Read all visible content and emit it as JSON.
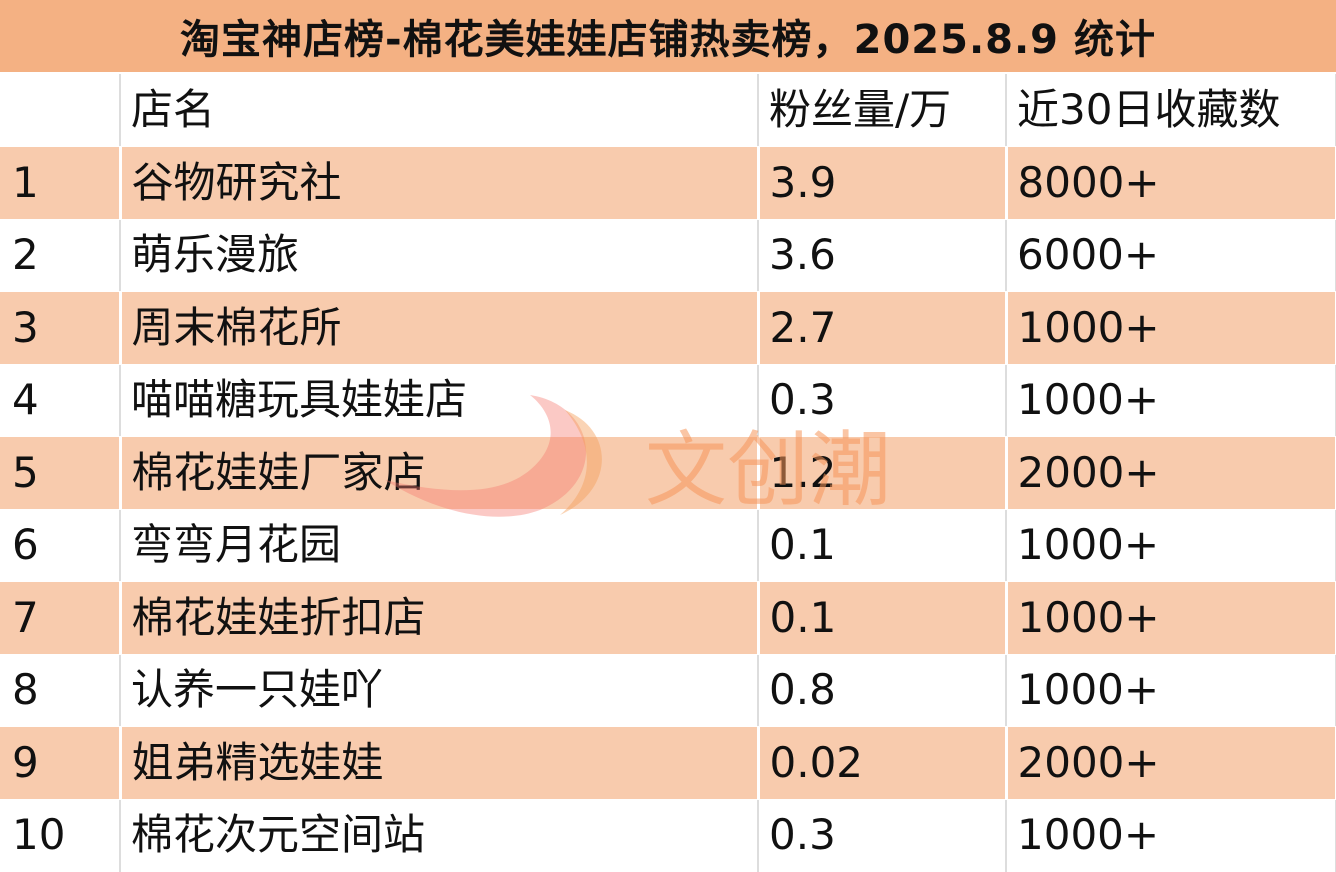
{
  "title": "淘宝神店榜-棉花美娃娃店铺热卖榜，2025.8.9 统计",
  "columns": {
    "rank": "",
    "name": "店名",
    "fans": "粉丝量/万",
    "favorites": "近30日收藏数"
  },
  "rows": [
    {
      "rank": "1",
      "name": "谷物研究社",
      "fans": "3.9",
      "favorites": "8000+"
    },
    {
      "rank": "2",
      "name": "萌乐漫旅",
      "fans": "3.6",
      "favorites": "6000+"
    },
    {
      "rank": "3",
      "name": "周末棉花所",
      "fans": "2.7",
      "favorites": "1000+"
    },
    {
      "rank": "4",
      "name": "喵喵糖玩具娃娃店",
      "fans": "0.3",
      "favorites": "1000+"
    },
    {
      "rank": "5",
      "name": "棉花娃娃厂家店",
      "fans": "1.2",
      "favorites": "2000+"
    },
    {
      "rank": "6",
      "name": "弯弯月花园",
      "fans": "0.1",
      "favorites": "1000+"
    },
    {
      "rank": "7",
      "name": "棉花娃娃折扣店",
      "fans": "0.1",
      "favorites": "1000+"
    },
    {
      "rank": "8",
      "name": "认养一只娃吖",
      "fans": "0.8",
      "favorites": "1000+"
    },
    {
      "rank": "9",
      "name": "姐弟精选娃娃",
      "fans": "0.02",
      "favorites": "2000+"
    },
    {
      "rank": "10",
      "name": "棉花次元空间站",
      "fans": "0.3",
      "favorites": "1000+"
    }
  ],
  "watermark": {
    "text": "文创潮"
  },
  "colors": {
    "title_bg": "#f4b183",
    "odd_row_bg": "#f8cbad",
    "even_row_bg": "#ffffff"
  }
}
